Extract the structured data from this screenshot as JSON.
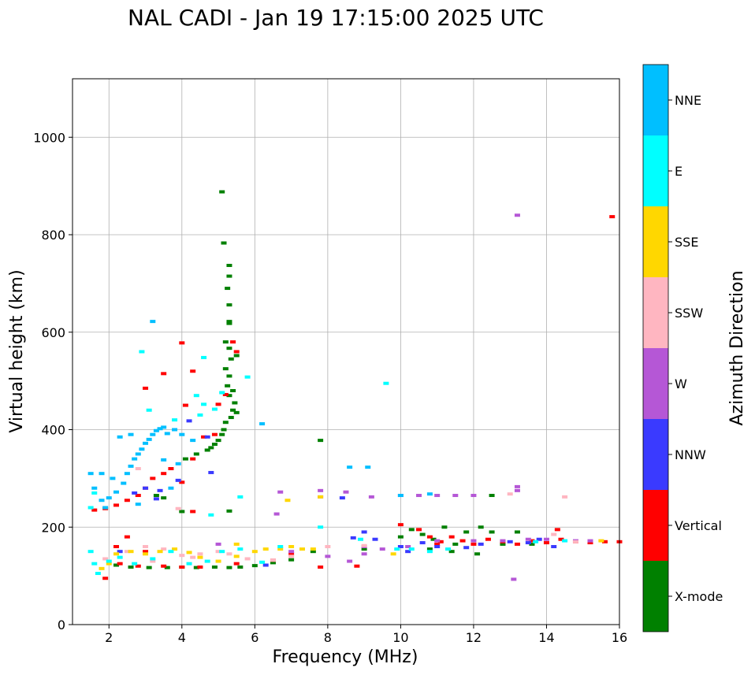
{
  "chart_data": {
    "type": "scatter",
    "title": "NAL CADI - Jan 19 17:15:00 2025 UTC",
    "xlabel": "Frequency (MHz)",
    "ylabel": "Virtual height (km)",
    "xlim": [
      1,
      16
    ],
    "ylim": [
      0,
      1120
    ],
    "xticks": [
      "2",
      "4",
      "6",
      "8",
      "10",
      "12",
      "14",
      "16"
    ],
    "yticks": [
      "0",
      "200",
      "400",
      "600",
      "800",
      "1000"
    ],
    "grid": true,
    "colorbar": {
      "label": "Azimuth Direction",
      "categories": [
        {
          "name": "X-mode",
          "color": "#008000"
        },
        {
          "name": "Vertical",
          "color": "#ff0000"
        },
        {
          "name": "NNW",
          "color": "#3a3aff"
        },
        {
          "name": "W",
          "color": "#b557d6"
        },
        {
          "name": "SSW",
          "color": "#ffb6c1"
        },
        {
          "name": "SSE",
          "color": "#ffd700"
        },
        {
          "name": "E",
          "color": "#00ffff"
        },
        {
          "name": "NNE",
          "color": "#00bfff"
        }
      ]
    },
    "series": [
      {
        "name": "X-mode",
        "points": [
          [
            5.1,
            888
          ],
          [
            5.15,
            783
          ],
          [
            5.3,
            737
          ],
          [
            5.3,
            715
          ],
          [
            5.25,
            690
          ],
          [
            5.3,
            656
          ],
          [
            5.3,
            622
          ],
          [
            5.3,
            618
          ],
          [
            5.2,
            580
          ],
          [
            5.3,
            567
          ],
          [
            5.5,
            552
          ],
          [
            5.35,
            545
          ],
          [
            5.2,
            525
          ],
          [
            5.3,
            510
          ],
          [
            5.25,
            490
          ],
          [
            5.4,
            480
          ],
          [
            5.3,
            470
          ],
          [
            5.45,
            455
          ],
          [
            5.4,
            440
          ],
          [
            5.5,
            435
          ],
          [
            5.35,
            425
          ],
          [
            5.2,
            415
          ],
          [
            5.15,
            400
          ],
          [
            5.1,
            390
          ],
          [
            5.0,
            378
          ],
          [
            4.9,
            370
          ],
          [
            4.8,
            363
          ],
          [
            4.7,
            358
          ],
          [
            4.4,
            350
          ],
          [
            4.1,
            340
          ],
          [
            3.3,
            265
          ],
          [
            3.5,
            260
          ],
          [
            4.0,
            232
          ],
          [
            7.8,
            378
          ],
          [
            5.3,
            233
          ],
          [
            2.2,
            122
          ],
          [
            2.6,
            118
          ],
          [
            3.1,
            117
          ],
          [
            3.6,
            117
          ],
          [
            4.0,
            118
          ],
          [
            4.4,
            117
          ],
          [
            4.9,
            118
          ],
          [
            5.3,
            117
          ],
          [
            5.6,
            118
          ],
          [
            6.0,
            121
          ],
          [
            6.5,
            127
          ],
          [
            7.0,
            133
          ],
          [
            7.6,
            150
          ],
          [
            9.0,
            155
          ],
          [
            10.0,
            180
          ],
          [
            10.3,
            195
          ],
          [
            10.6,
            185
          ],
          [
            10.9,
            175
          ],
          [
            11.2,
            200
          ],
          [
            11.5,
            165
          ],
          [
            11.8,
            190
          ],
          [
            12.2,
            200
          ],
          [
            12.5,
            190
          ],
          [
            12.8,
            165
          ],
          [
            13.2,
            190
          ],
          [
            13.6,
            165
          ],
          [
            12.5,
            265
          ],
          [
            10.8,
            155
          ],
          [
            11.4,
            150
          ],
          [
            12.1,
            145
          ]
        ]
      },
      {
        "name": "Vertical",
        "points": [
          [
            1.6,
            235
          ],
          [
            1.9,
            238
          ],
          [
            2.2,
            245
          ],
          [
            2.5,
            255
          ],
          [
            2.8,
            265
          ],
          [
            3.0,
            280
          ],
          [
            3.2,
            300
          ],
          [
            3.5,
            310
          ],
          [
            3.7,
            320
          ],
          [
            4.0,
            292
          ],
          [
            4.3,
            340
          ],
          [
            4.6,
            385
          ],
          [
            4.9,
            390
          ],
          [
            4.0,
            578
          ],
          [
            4.3,
            520
          ],
          [
            3.0,
            485
          ],
          [
            3.5,
            515
          ],
          [
            4.1,
            450
          ],
          [
            5.4,
            580
          ],
          [
            5.5,
            560
          ],
          [
            5.2,
            472
          ],
          [
            5.0,
            452
          ],
          [
            4.3,
            232
          ],
          [
            2.5,
            180
          ],
          [
            2.2,
            160
          ],
          [
            3.0,
            150
          ],
          [
            3.5,
            120
          ],
          [
            4.0,
            118
          ],
          [
            4.5,
            118
          ],
          [
            5.5,
            125
          ],
          [
            6.5,
            132
          ],
          [
            7.0,
            145
          ],
          [
            7.8,
            118
          ],
          [
            8.8,
            120
          ],
          [
            10.0,
            205
          ],
          [
            10.5,
            195
          ],
          [
            10.8,
            180
          ],
          [
            11.1,
            170
          ],
          [
            11.4,
            180
          ],
          [
            11.7,
            172
          ],
          [
            12.0,
            165
          ],
          [
            12.4,
            175
          ],
          [
            12.8,
            170
          ],
          [
            13.2,
            165
          ],
          [
            13.6,
            172
          ],
          [
            14.0,
            168
          ],
          [
            14.4,
            175
          ],
          [
            14.8,
            170
          ],
          [
            15.2,
            168
          ],
          [
            15.6,
            170
          ],
          [
            16.0,
            170
          ],
          [
            15.8,
            837
          ],
          [
            1.9,
            95
          ],
          [
            2.3,
            125
          ],
          [
            2.8,
            120
          ],
          [
            14.3,
            195
          ],
          [
            11.0,
            165
          ]
        ]
      },
      {
        "name": "NNW",
        "points": [
          [
            2.7,
            270
          ],
          [
            3.0,
            280
          ],
          [
            3.4,
            275
          ],
          [
            3.9,
            296
          ],
          [
            4.7,
            385
          ],
          [
            4.8,
            312
          ],
          [
            4.2,
            418
          ],
          [
            3.3,
            258
          ],
          [
            6.3,
            122
          ],
          [
            8.4,
            260
          ],
          [
            8.7,
            178
          ],
          [
            9.0,
            190
          ],
          [
            9.3,
            175
          ],
          [
            10.0,
            160
          ],
          [
            10.2,
            150
          ],
          [
            10.6,
            168
          ],
          [
            11.0,
            160
          ],
          [
            11.8,
            158
          ],
          [
            12.2,
            165
          ],
          [
            13.0,
            170
          ],
          [
            13.5,
            168
          ],
          [
            13.8,
            175
          ],
          [
            14.2,
            160
          ],
          [
            2.3,
            150
          ]
        ]
      },
      {
        "name": "W",
        "points": [
          [
            13.2,
            840
          ],
          [
            13.2,
            283
          ],
          [
            13.2,
            275
          ],
          [
            13.1,
            93
          ],
          [
            7.8,
            275
          ],
          [
            7.8,
            262
          ],
          [
            8.5,
            272
          ],
          [
            9.2,
            262
          ],
          [
            10.0,
            265
          ],
          [
            10.5,
            265
          ],
          [
            11.0,
            265
          ],
          [
            11.5,
            265
          ],
          [
            12.0,
            265
          ],
          [
            6.7,
            272
          ],
          [
            6.6,
            227
          ],
          [
            8.0,
            140
          ],
          [
            8.6,
            130
          ],
          [
            9.0,
            145
          ],
          [
            9.0,
            160
          ],
          [
            9.5,
            155
          ],
          [
            10.2,
            160
          ],
          [
            11.0,
            172
          ],
          [
            12.0,
            172
          ],
          [
            12.8,
            172
          ],
          [
            13.5,
            175
          ],
          [
            14.0,
            175
          ],
          [
            14.8,
            172
          ],
          [
            15.2,
            172
          ],
          [
            7.0,
            150
          ],
          [
            5.0,
            165
          ]
        ]
      },
      {
        "name": "SSW",
        "points": [
          [
            14.5,
            262
          ],
          [
            13.0,
            268
          ],
          [
            3.9,
            238
          ],
          [
            2.8,
            320
          ],
          [
            2.5,
            150
          ],
          [
            3.0,
            160
          ],
          [
            3.5,
            155
          ],
          [
            4.0,
            142
          ],
          [
            4.5,
            145
          ],
          [
            5.0,
            150
          ],
          [
            5.3,
            145
          ],
          [
            5.8,
            135
          ],
          [
            6.5,
            132
          ],
          [
            7.0,
            140
          ],
          [
            8.0,
            160
          ],
          [
            9.0,
            162
          ],
          [
            14.2,
            185
          ],
          [
            14.8,
            170
          ],
          [
            1.9,
            135
          ],
          [
            3.2,
            130
          ],
          [
            4.3,
            138
          ]
        ]
      },
      {
        "name": "SSE",
        "points": [
          [
            2.2,
            145
          ],
          [
            2.6,
            150
          ],
          [
            3.0,
            145
          ],
          [
            3.4,
            150
          ],
          [
            3.8,
            155
          ],
          [
            4.2,
            148
          ],
          [
            4.5,
            138
          ],
          [
            5.0,
            130
          ],
          [
            5.5,
            140
          ],
          [
            6.0,
            150
          ],
          [
            6.3,
            155
          ],
          [
            6.7,
            155
          ],
          [
            7.0,
            160
          ],
          [
            7.3,
            155
          ],
          [
            7.6,
            155
          ],
          [
            7.8,
            262
          ],
          [
            6.9,
            255
          ],
          [
            9.8,
            145
          ],
          [
            15.5,
            172
          ],
          [
            5.5,
            165
          ],
          [
            2.0,
            125
          ],
          [
            1.8,
            115
          ]
        ]
      },
      {
        "name": "E",
        "points": [
          [
            1.5,
            150
          ],
          [
            1.6,
            125
          ],
          [
            1.7,
            105
          ],
          [
            2.0,
            130
          ],
          [
            2.3,
            138
          ],
          [
            2.7,
            125
          ],
          [
            3.2,
            135
          ],
          [
            3.7,
            150
          ],
          [
            4.2,
            125
          ],
          [
            4.7,
            130
          ],
          [
            5.1,
            150
          ],
          [
            5.6,
            155
          ],
          [
            6.2,
            128
          ],
          [
            6.7,
            160
          ],
          [
            7.8,
            200
          ],
          [
            8.9,
            175
          ],
          [
            9.6,
            495
          ],
          [
            2.9,
            560
          ],
          [
            3.1,
            440
          ],
          [
            3.8,
            420
          ],
          [
            4.5,
            430
          ],
          [
            4.4,
            470
          ],
          [
            4.6,
            452
          ],
          [
            4.6,
            548
          ],
          [
            5.1,
            476
          ],
          [
            5.8,
            508
          ],
          [
            4.9,
            442
          ],
          [
            5.6,
            262
          ],
          [
            4.8,
            225
          ],
          [
            9.9,
            155
          ],
          [
            10.3,
            155
          ],
          [
            10.8,
            150
          ],
          [
            11.3,
            155
          ],
          [
            13.7,
            170
          ],
          [
            14.5,
            172
          ],
          [
            1.6,
            270
          ],
          [
            1.5,
            240
          ]
        ]
      },
      {
        "name": "NNE",
        "points": [
          [
            1.8,
            255
          ],
          [
            1.9,
            240
          ],
          [
            2.0,
            260
          ],
          [
            2.2,
            272
          ],
          [
            2.4,
            290
          ],
          [
            2.5,
            310
          ],
          [
            2.6,
            325
          ],
          [
            2.7,
            340
          ],
          [
            2.8,
            350
          ],
          [
            2.9,
            360
          ],
          [
            3.0,
            372
          ],
          [
            3.1,
            380
          ],
          [
            3.2,
            390
          ],
          [
            3.3,
            398
          ],
          [
            3.4,
            402
          ],
          [
            3.5,
            405
          ],
          [
            3.6,
            392
          ],
          [
            3.8,
            400
          ],
          [
            4.0,
            390
          ],
          [
            3.2,
            622
          ],
          [
            2.3,
            385
          ],
          [
            2.6,
            390
          ],
          [
            3.9,
            330
          ],
          [
            3.5,
            338
          ],
          [
            2.1,
            300
          ],
          [
            1.8,
            310
          ],
          [
            1.5,
            310
          ],
          [
            1.6,
            280
          ],
          [
            2.8,
            247
          ],
          [
            3.7,
            280
          ],
          [
            4.3,
            378
          ],
          [
            6.2,
            412
          ],
          [
            8.6,
            323
          ],
          [
            9.1,
            323
          ],
          [
            10.0,
            265
          ],
          [
            10.8,
            268
          ]
        ]
      }
    ]
  }
}
